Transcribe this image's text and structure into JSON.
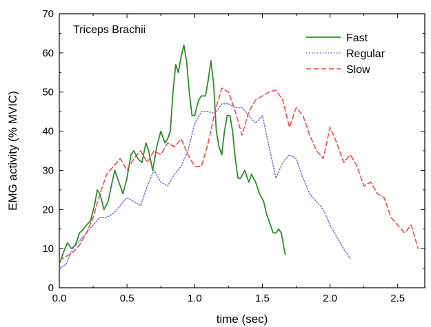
{
  "chart_data": {
    "type": "line",
    "annotation": "Triceps Brachii",
    "xlabel": "time (sec)",
    "ylabel": "EMG activity (% MVIC)",
    "xlim": [
      0,
      2.7
    ],
    "ylim": [
      0,
      70
    ],
    "xticks": [
      "0.0",
      "0.5",
      "1.0",
      "1.5",
      "2.0",
      "2.5"
    ],
    "yticks": [
      "0",
      "10",
      "20",
      "30",
      "40",
      "50",
      "60",
      "70"
    ],
    "xtick_values": [
      0,
      0.5,
      1.0,
      1.5,
      2.0,
      2.5
    ],
    "ytick_values": [
      0,
      10,
      20,
      30,
      40,
      50,
      60,
      70
    ],
    "grid": false,
    "legend_position": "top-right",
    "series": [
      {
        "name": "Fast",
        "color": "#2e8b2e",
        "style": "solid",
        "points": [
          [
            0,
            6
          ],
          [
            0.03,
            9
          ],
          [
            0.06,
            11.5
          ],
          [
            0.09,
            10
          ],
          [
            0.12,
            11
          ],
          [
            0.15,
            14
          ],
          [
            0.18,
            15
          ],
          [
            0.2,
            16
          ],
          [
            0.23,
            17
          ],
          [
            0.26,
            21
          ],
          [
            0.28,
            25
          ],
          [
            0.3,
            24
          ],
          [
            0.33,
            20
          ],
          [
            0.36,
            22
          ],
          [
            0.39,
            27
          ],
          [
            0.41,
            30
          ],
          [
            0.44,
            27
          ],
          [
            0.47,
            24
          ],
          [
            0.5,
            28
          ],
          [
            0.53,
            34
          ],
          [
            0.55,
            35
          ],
          [
            0.58,
            33
          ],
          [
            0.61,
            32
          ],
          [
            0.64,
            37
          ],
          [
            0.66,
            35
          ],
          [
            0.69,
            30
          ],
          [
            0.72,
            36
          ],
          [
            0.75,
            40
          ],
          [
            0.78,
            37
          ],
          [
            0.8,
            38
          ],
          [
            0.82,
            40
          ],
          [
            0.84,
            50
          ],
          [
            0.86,
            57
          ],
          [
            0.88,
            55
          ],
          [
            0.9,
            59
          ],
          [
            0.92,
            62
          ],
          [
            0.94,
            58
          ],
          [
            0.96,
            50
          ],
          [
            0.98,
            44
          ],
          [
            1.0,
            44
          ],
          [
            1.03,
            48
          ],
          [
            1.05,
            49
          ],
          [
            1.08,
            49
          ],
          [
            1.1,
            53
          ],
          [
            1.12,
            58
          ],
          [
            1.14,
            52
          ],
          [
            1.16,
            40
          ],
          [
            1.18,
            36
          ],
          [
            1.2,
            34
          ],
          [
            1.22,
            40
          ],
          [
            1.24,
            44
          ],
          [
            1.26,
            44
          ],
          [
            1.28,
            40
          ],
          [
            1.3,
            33
          ],
          [
            1.32,
            28
          ],
          [
            1.34,
            28
          ],
          [
            1.37,
            30
          ],
          [
            1.4,
            27
          ],
          [
            1.42,
            29
          ],
          [
            1.45,
            27
          ],
          [
            1.48,
            24
          ],
          [
            1.51,
            22
          ],
          [
            1.53,
            19
          ],
          [
            1.56,
            16
          ],
          [
            1.58,
            14
          ],
          [
            1.6,
            14
          ],
          [
            1.62,
            15
          ],
          [
            1.64,
            14
          ],
          [
            1.66,
            10
          ],
          [
            1.67,
            8.5
          ]
        ]
      },
      {
        "name": "Regular",
        "color": "#6a6ae8",
        "style": "dotted",
        "points": [
          [
            0,
            5
          ],
          [
            0.05,
            6
          ],
          [
            0.1,
            10
          ],
          [
            0.15,
            12
          ],
          [
            0.2,
            14
          ],
          [
            0.25,
            16
          ],
          [
            0.3,
            18
          ],
          [
            0.35,
            18
          ],
          [
            0.4,
            19
          ],
          [
            0.45,
            21
          ],
          [
            0.5,
            23
          ],
          [
            0.55,
            22
          ],
          [
            0.6,
            21
          ],
          [
            0.65,
            26
          ],
          [
            0.7,
            30
          ],
          [
            0.75,
            27
          ],
          [
            0.8,
            26
          ],
          [
            0.85,
            29
          ],
          [
            0.9,
            31
          ],
          [
            0.95,
            35
          ],
          [
            1.0,
            42
          ],
          [
            1.05,
            45
          ],
          [
            1.1,
            45
          ],
          [
            1.15,
            44.5
          ],
          [
            1.2,
            47
          ],
          [
            1.25,
            47
          ],
          [
            1.3,
            46
          ],
          [
            1.35,
            46
          ],
          [
            1.4,
            44
          ],
          [
            1.45,
            42
          ],
          [
            1.5,
            44
          ],
          [
            1.55,
            36
          ],
          [
            1.6,
            28
          ],
          [
            1.65,
            32
          ],
          [
            1.7,
            34
          ],
          [
            1.75,
            33
          ],
          [
            1.8,
            28
          ],
          [
            1.85,
            24
          ],
          [
            1.9,
            22
          ],
          [
            1.95,
            20
          ],
          [
            2.0,
            16
          ],
          [
            2.05,
            13
          ],
          [
            2.1,
            10
          ],
          [
            2.15,
            7.5
          ]
        ]
      },
      {
        "name": "Slow",
        "color": "#ff4040",
        "style": "dashed",
        "points": [
          [
            0,
            7
          ],
          [
            0.05,
            8
          ],
          [
            0.1,
            9
          ],
          [
            0.15,
            11
          ],
          [
            0.2,
            14
          ],
          [
            0.25,
            18
          ],
          [
            0.3,
            24
          ],
          [
            0.35,
            29
          ],
          [
            0.4,
            31
          ],
          [
            0.45,
            33
          ],
          [
            0.5,
            30
          ],
          [
            0.55,
            33
          ],
          [
            0.6,
            35
          ],
          [
            0.65,
            32
          ],
          [
            0.7,
            35
          ],
          [
            0.75,
            34
          ],
          [
            0.8,
            37
          ],
          [
            0.85,
            36
          ],
          [
            0.9,
            38
          ],
          [
            0.95,
            34
          ],
          [
            1.0,
            31
          ],
          [
            1.05,
            31
          ],
          [
            1.1,
            37
          ],
          [
            1.15,
            45
          ],
          [
            1.2,
            51
          ],
          [
            1.25,
            50
          ],
          [
            1.3,
            45
          ],
          [
            1.35,
            39
          ],
          [
            1.4,
            45
          ],
          [
            1.45,
            48
          ],
          [
            1.5,
            49
          ],
          [
            1.55,
            50
          ],
          [
            1.6,
            50.5
          ],
          [
            1.65,
            48
          ],
          [
            1.7,
            41
          ],
          [
            1.75,
            46
          ],
          [
            1.8,
            44
          ],
          [
            1.85,
            39
          ],
          [
            1.9,
            35
          ],
          [
            1.95,
            33
          ],
          [
            2.0,
            41
          ],
          [
            2.05,
            37
          ],
          [
            2.1,
            32
          ],
          [
            2.15,
            34
          ],
          [
            2.2,
            31
          ],
          [
            2.25,
            26
          ],
          [
            2.3,
            27
          ],
          [
            2.35,
            24
          ],
          [
            2.4,
            23
          ],
          [
            2.45,
            18
          ],
          [
            2.5,
            16
          ],
          [
            2.55,
            14
          ],
          [
            2.6,
            16
          ],
          [
            2.65,
            10
          ]
        ]
      }
    ]
  }
}
